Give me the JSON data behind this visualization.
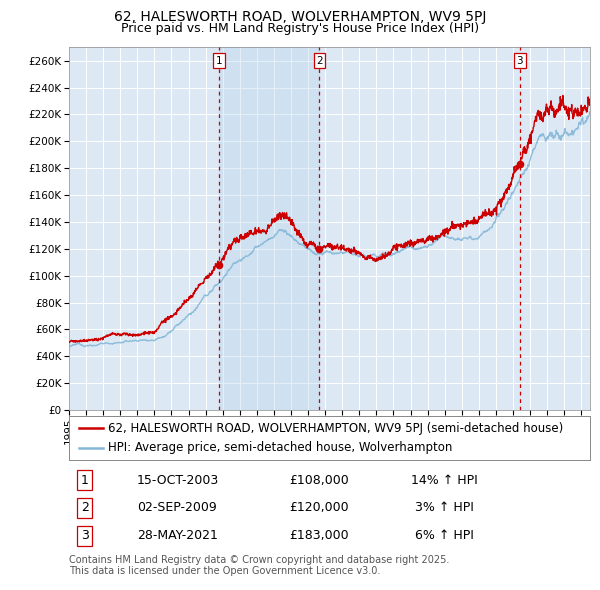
{
  "title": "62, HALESWORTH ROAD, WOLVERHAMPTON, WV9 5PJ",
  "subtitle": "Price paid vs. HM Land Registry's House Price Index (HPI)",
  "red_label": "62, HALESWORTH ROAD, WOLVERHAMPTON, WV9 5PJ (semi-detached house)",
  "blue_label": "HPI: Average price, semi-detached house, Wolverhampton",
  "footer": "Contains HM Land Registry data © Crown copyright and database right 2025.\nThis data is licensed under the Open Government Licence v3.0.",
  "sale_markers": [
    {
      "num": 1,
      "date": "15-OCT-2003",
      "price": 108000,
      "pct": "14%",
      "dir": "↑",
      "x_year": 2003.79
    },
    {
      "num": 2,
      "date": "02-SEP-2009",
      "price": 120000,
      "pct": "3%",
      "dir": "↑",
      "x_year": 2009.67
    },
    {
      "num": 3,
      "date": "28-MAY-2021",
      "price": 183000,
      "pct": "6%",
      "dir": "↑",
      "x_year": 2021.41
    }
  ],
  "ylim": [
    0,
    270000
  ],
  "xlim_start": 1995.0,
  "xlim_end": 2025.5,
  "plot_bg": "#dce9f5",
  "grid_color": "#ffffff",
  "red_color": "#cc0000",
  "blue_color": "#85b8d8",
  "vline_color": "#cc0000",
  "marker_color": "#cc0000",
  "title_fontsize": 10,
  "subtitle_fontsize": 9,
  "tick_fontsize": 7.5,
  "legend_fontsize": 8.5,
  "footer_fontsize": 7
}
